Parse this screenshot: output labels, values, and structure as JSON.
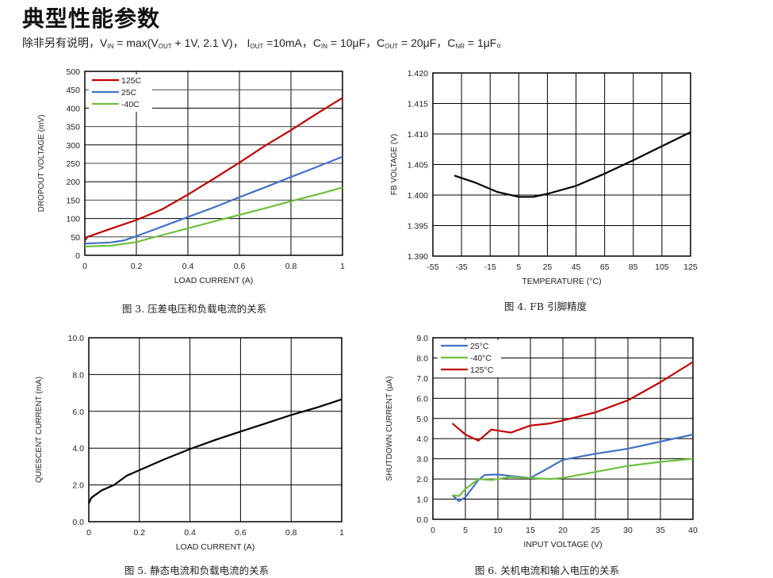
{
  "header": {
    "title": "典型性能参数",
    "subtitle": {
      "p1": "除非另有说明，V",
      "s1": "IN",
      "p2": " = max(V",
      "s2": "OUT",
      "p3": " + 1V, 2.1 V)，  I",
      "s3": "OUT",
      "p4": " =10mA，C",
      "s4": "IN",
      "p5": " = 10μF，C",
      "s5": "OUT",
      "p6": " = 20μF，C",
      "s6": "NR",
      "p7": " = 1μF。"
    }
  },
  "chart_data": [
    {
      "type": "line",
      "caption": "图 3. 压差电压和负载电流的关系",
      "xlabel": "LOAD CURRENT (A)",
      "ylabel": "DROPOUT VOLTAGE (mV)",
      "xlim": [
        0,
        1
      ],
      "ylim": [
        0,
        500
      ],
      "xticks": [
        "0",
        "0.2",
        "0.4",
        "0.6",
        "0.8",
        "1"
      ],
      "yticks": [
        "0",
        "50",
        "100",
        "150",
        "200",
        "250",
        "300",
        "350",
        "400",
        "450",
        "500"
      ],
      "grid": true,
      "legend": "top-left",
      "series": [
        {
          "name": "125C",
          "color": "#c00000",
          "points": [
            [
              0,
              40
            ],
            [
              0.01,
              50
            ],
            [
              0.1,
              72
            ],
            [
              0.2,
              96
            ],
            [
              0.3,
              125
            ],
            [
              0.4,
              165
            ],
            [
              0.5,
              208
            ],
            [
              0.6,
              252
            ],
            [
              0.7,
              298
            ],
            [
              0.8,
              340
            ],
            [
              0.9,
              385
            ],
            [
              1,
              428
            ]
          ]
        },
        {
          "name": "25C",
          "color": "#4472c4",
          "points": [
            [
              0,
              32
            ],
            [
              0.1,
              35
            ],
            [
              0.15,
              40
            ],
            [
              0.2,
              52
            ],
            [
              0.3,
              78
            ],
            [
              0.4,
              104
            ],
            [
              0.5,
              130
            ],
            [
              0.6,
              158
            ],
            [
              0.7,
              185
            ],
            [
              0.8,
              213
            ],
            [
              0.9,
              240
            ],
            [
              1,
              268
            ]
          ]
        },
        {
          "name": "-40C",
          "color": "#70bf40",
          "points": [
            [
              0,
              24
            ],
            [
              0.1,
              26
            ],
            [
              0.2,
              36
            ],
            [
              0.3,
              55
            ],
            [
              0.4,
              73
            ],
            [
              0.5,
              92
            ],
            [
              0.6,
              110
            ],
            [
              0.7,
              128
            ],
            [
              0.8,
              147
            ],
            [
              0.9,
              165
            ],
            [
              1,
              184
            ]
          ]
        }
      ]
    },
    {
      "type": "line",
      "caption": "图 4. FB 引脚精度",
      "xlabel": "TEMPERATURE (°C)",
      "ylabel": "FB VOLTAGE (V)",
      "xlim": [
        -55,
        125
      ],
      "ylim": [
        1.39,
        1.42
      ],
      "xticks": [
        "-55",
        "-35",
        "-15",
        "5",
        "25",
        "45",
        "65",
        "85",
        "105",
        "125"
      ],
      "yticks": [
        "1.390",
        "1.395",
        "1.400",
        "1.405",
        "1.410",
        "1.415",
        "1.420"
      ],
      "grid": true,
      "legend": "none",
      "series": [
        {
          "name": "FB",
          "color": "#000000",
          "points": [
            [
              -40,
              1.4032
            ],
            [
              -25,
              1.402
            ],
            [
              -10,
              1.4005
            ],
            [
              5,
              1.3997
            ],
            [
              15,
              1.3997
            ],
            [
              25,
              1.4002
            ],
            [
              45,
              1.4015
            ],
            [
              65,
              1.4035
            ],
            [
              85,
              1.4057
            ],
            [
              105,
              1.408
            ],
            [
              125,
              1.4103
            ]
          ]
        }
      ]
    },
    {
      "type": "line",
      "caption": "图 5.  静态电流和负载电流的关系",
      "xlabel": "LOAD CURRENT (A)",
      "ylabel": "QUIESCENT CURRENT (mA)",
      "xlim": [
        0,
        1
      ],
      "ylim": [
        0,
        10
      ],
      "xticks": [
        "0",
        "0.2",
        "0.4",
        "0.6",
        "0.8",
        "1"
      ],
      "yticks": [
        "0.0",
        "2.0",
        "4.0",
        "6.0",
        "8.0",
        "10.0"
      ],
      "grid": true,
      "legend": "none",
      "series": [
        {
          "name": "IQ",
          "color": "#000000",
          "points": [
            [
              0,
              1.0
            ],
            [
              0.01,
              1.3
            ],
            [
              0.05,
              1.7
            ],
            [
              0.1,
              2.0
            ],
            [
              0.15,
              2.5
            ],
            [
              0.2,
              2.8
            ],
            [
              0.3,
              3.4
            ],
            [
              0.4,
              3.95
            ],
            [
              0.5,
              4.45
            ],
            [
              0.6,
              4.9
            ],
            [
              0.7,
              5.35
            ],
            [
              0.8,
              5.8
            ],
            [
              0.9,
              6.2
            ],
            [
              1,
              6.65
            ]
          ]
        }
      ]
    },
    {
      "type": "line",
      "caption": "图 6. 关机电流和输入电压的关系",
      "xlabel": "INPUT VOLTAGE (V)",
      "ylabel": "SHUTDOWN CURRENT (μA)",
      "xlim": [
        0,
        40
      ],
      "ylim": [
        0,
        9
      ],
      "xticks": [
        "0",
        "5",
        "10",
        "15",
        "20",
        "25",
        "30",
        "35",
        "40"
      ],
      "yticks": [
        "0.0",
        "1.0",
        "2.0",
        "3.0",
        "4.0",
        "5.0",
        "6.0",
        "7.0",
        "8.0",
        "9.0"
      ],
      "grid": true,
      "legend": "top-left",
      "series": [
        {
          "name": "25°C",
          "color": "#4472c4",
          "points": [
            [
              3,
              1.2
            ],
            [
              4,
              0.9
            ],
            [
              5,
              1.1
            ],
            [
              7,
              1.95
            ],
            [
              8,
              2.2
            ],
            [
              10,
              2.22
            ],
            [
              12,
              2.15
            ],
            [
              15,
              2.05
            ],
            [
              17,
              2.4
            ],
            [
              20,
              2.95
            ],
            [
              25,
              3.25
            ],
            [
              30,
              3.5
            ],
            [
              35,
              3.85
            ],
            [
              40,
              4.2
            ]
          ]
        },
        {
          "name": "-40°C",
          "color": "#70bf40",
          "points": [
            [
              3,
              1.2
            ],
            [
              4,
              1.15
            ],
            [
              5,
              1.5
            ],
            [
              7,
              2.0
            ],
            [
              9,
              1.95
            ],
            [
              12,
              2.1
            ],
            [
              15,
              2.05
            ],
            [
              18,
              2.0
            ],
            [
              20,
              2.05
            ],
            [
              25,
              2.35
            ],
            [
              30,
              2.65
            ],
            [
              35,
              2.85
            ],
            [
              40,
              3.0
            ]
          ]
        },
        {
          "name": "125°C",
          "color": "#c00000",
          "points": [
            [
              3,
              4.75
            ],
            [
              5,
              4.2
            ],
            [
              7,
              3.9
            ],
            [
              9,
              4.45
            ],
            [
              12,
              4.3
            ],
            [
              15,
              4.65
            ],
            [
              18,
              4.75
            ],
            [
              20,
              4.9
            ],
            [
              25,
              5.3
            ],
            [
              30,
              5.9
            ],
            [
              35,
              6.8
            ],
            [
              40,
              7.8
            ]
          ]
        }
      ]
    }
  ]
}
